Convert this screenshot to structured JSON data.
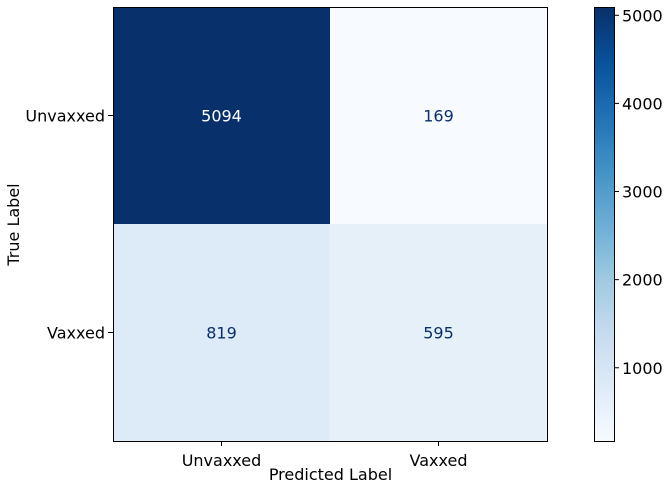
{
  "chart_data": {
    "type": "heatmap",
    "title": "",
    "xlabel": "Predicted Label",
    "ylabel": "True Label",
    "x_categories": [
      "Unvaxxed",
      "Vaxxed"
    ],
    "y_categories": [
      "Unvaxxed",
      "Vaxxed"
    ],
    "values": [
      [
        5094,
        169
      ],
      [
        819,
        595
      ]
    ],
    "colormap": "Blues",
    "colorbar": {
      "ticks": [
        1000,
        2000,
        3000,
        4000,
        5000
      ],
      "range": [
        169,
        5094
      ]
    },
    "grid": false,
    "text_colors": {
      "light": "#ffffff",
      "dark": "#08306b"
    }
  }
}
